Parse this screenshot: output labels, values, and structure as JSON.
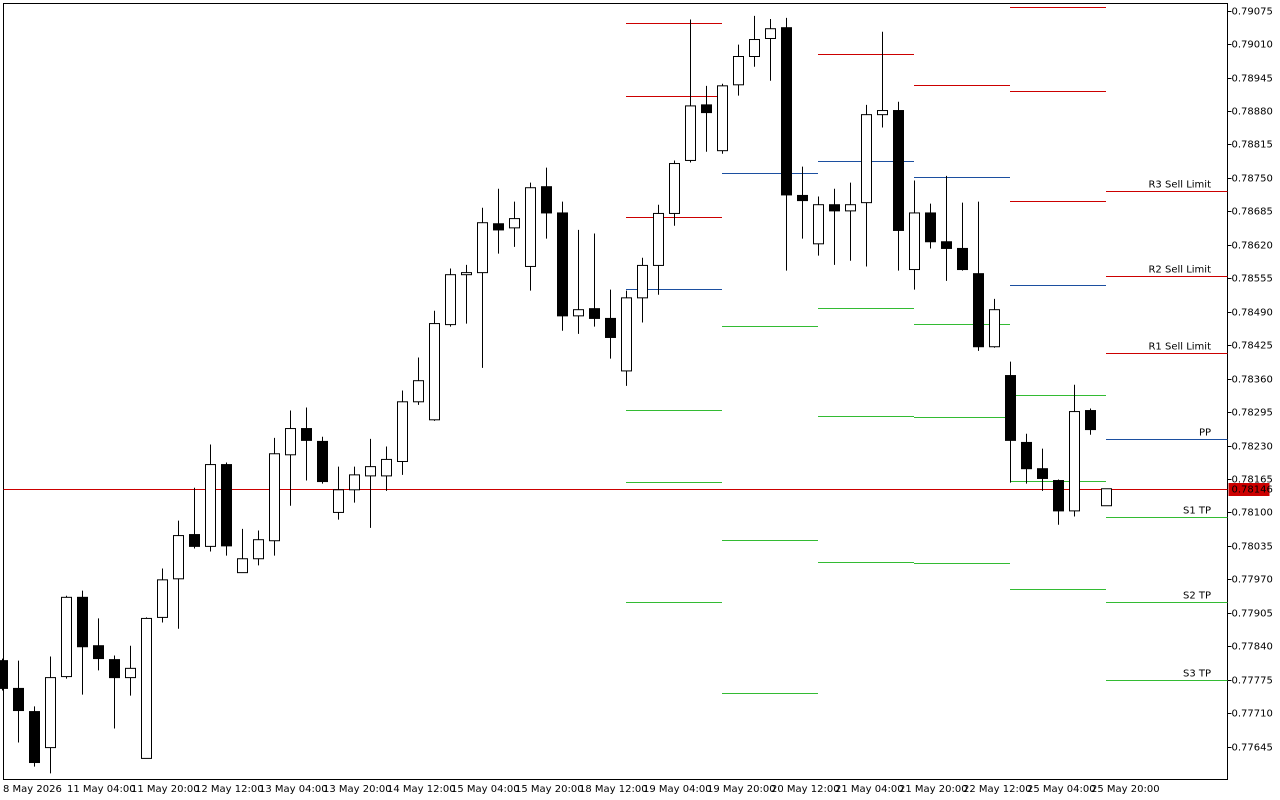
{
  "chart_data": {
    "type": "candlestick",
    "categories": [
      "8 May 2026",
      null,
      null,
      null,
      "11 May 04:00",
      null,
      null,
      null,
      "11 May 20:00",
      null,
      null,
      null,
      "12 May 12:00",
      null,
      null,
      null,
      "13 May 04:00",
      null,
      null,
      null,
      "13 May 20:00",
      null,
      null,
      null,
      "14 May 12:00",
      null,
      null,
      null,
      "15 May 04:00",
      null,
      null,
      null,
      "15 May 20:00",
      null,
      null,
      null,
      "18 May 12:00",
      null,
      null,
      null,
      "19 May 04:00",
      null,
      null,
      null,
      "19 May 20:00",
      null,
      null,
      null,
      "20 May 12:00",
      null,
      null,
      null,
      "21 May 04:00",
      null,
      null,
      null,
      "21 May 20:00",
      null,
      null,
      null,
      "22 May 12:00",
      null,
      null,
      null,
      "25 May 04:00",
      null,
      null,
      null,
      "25 May 20:00",
      null
    ],
    "open": [
      0.77812,
      0.77758,
      0.77713,
      0.77643,
      0.77781,
      0.77935,
      0.77841,
      0.77814,
      0.77779,
      0.77622,
      0.77896,
      0.77971,
      0.78057,
      0.78034,
      0.78193,
      0.77983,
      0.7801,
      0.78045,
      0.78212,
      0.78263,
      0.78238,
      0.781,
      0.78144,
      0.78171,
      0.78171,
      0.78199,
      0.78315,
      0.7828,
      0.78465,
      0.78562,
      0.78566,
      0.78661,
      0.78653,
      0.78578,
      0.78733,
      0.78682,
      0.78482,
      0.78496,
      0.78477,
      0.78375,
      0.78517,
      0.7858,
      0.78681,
      0.78784,
      0.78892,
      0.78803,
      0.78931,
      0.78986,
      0.79021,
      0.79042,
      0.78716,
      0.78622,
      0.78698,
      0.78686,
      0.78702,
      0.78873,
      0.78881,
      0.78572,
      0.78682,
      0.78626,
      0.78613,
      0.78564,
      0.78422,
      0.78366,
      0.78236,
      0.78185,
      0.78162,
      0.78103,
      0.78298,
      0.78113
    ],
    "high": [
      0.77816,
      0.77812,
      0.77723,
      0.7782,
      0.77938,
      0.77948,
      0.77894,
      0.77822,
      0.77841,
      0.77896,
      0.77991,
      0.78084,
      0.78148,
      0.78232,
      0.78197,
      0.78068,
      0.78065,
      0.78245,
      0.78298,
      0.78304,
      0.78247,
      0.78189,
      0.78189,
      0.78243,
      0.78228,
      0.78337,
      0.78401,
      0.78492,
      0.78574,
      0.78581,
      0.78692,
      0.78729,
      0.78704,
      0.78741,
      0.7877,
      0.78704,
      0.78649,
      0.78642,
      0.78533,
      0.78531,
      0.78595,
      0.78698,
      0.78784,
      0.79058,
      0.78929,
      0.78933,
      0.79009,
      0.79065,
      0.79059,
      0.79061,
      0.78772,
      0.78714,
      0.78729,
      0.78741,
      0.78892,
      0.79034,
      0.78898,
      0.78745,
      0.787,
      0.78754,
      0.78702,
      0.78704,
      0.78515,
      0.78393,
      0.78253,
      0.78224,
      0.78164,
      0.78348,
      0.78302,
      0.78146
    ],
    "low": [
      0.77754,
      0.77653,
      0.77606,
      0.77593,
      0.77777,
      0.77746,
      0.77793,
      0.7768,
      0.77744,
      0.77622,
      0.77886,
      0.77874,
      0.7803,
      0.78024,
      0.78016,
      0.77983,
      0.77997,
      0.78016,
      0.78113,
      0.78162,
      0.78156,
      0.78086,
      0.78119,
      0.7807,
      0.78142,
      0.78173,
      0.78309,
      0.78278,
      0.78461,
      0.78467,
      0.78381,
      0.78603,
      0.78616,
      0.78531,
      0.78632,
      0.78453,
      0.78447,
      0.78461,
      0.78399,
      0.78346,
      0.78469,
      0.78523,
      0.78657,
      0.7878,
      0.78801,
      0.78797,
      0.7891,
      0.78966,
      0.78939,
      0.7857,
      0.78632,
      0.78599,
      0.78581,
      0.78589,
      0.78578,
      0.78848,
      0.7857,
      0.78533,
      0.78613,
      0.7855,
      0.7857,
      0.78414,
      0.7842,
      0.78158,
      0.78156,
      0.78142,
      0.78076,
      0.78092,
      0.78251,
      0.78113
    ],
    "close": [
      0.77758,
      0.77715,
      0.77614,
      0.77779,
      0.77935,
      0.77839,
      0.77816,
      0.77779,
      0.77797,
      0.77894,
      0.77969,
      0.78055,
      0.78034,
      0.78193,
      0.78035,
      0.7801,
      0.78047,
      0.78214,
      0.78263,
      0.7824,
      0.7816,
      0.78144,
      0.78173,
      0.78189,
      0.78203,
      0.78315,
      0.78356,
      0.78467,
      0.78562,
      0.78566,
      0.78663,
      0.78649,
      0.78671,
      0.78731,
      0.78682,
      0.78482,
      0.78494,
      0.78477,
      0.7844,
      0.78517,
      0.7858,
      0.78681,
      0.78778,
      0.7889,
      0.78877,
      0.78929,
      0.78986,
      0.79019,
      0.7904,
      0.78717,
      0.78706,
      0.78698,
      0.78686,
      0.78698,
      0.78873,
      0.78881,
      0.78648,
      0.78682,
      0.78626,
      0.78613,
      0.78572,
      0.78422,
      0.78494,
      0.7824,
      0.78185,
      0.78166,
      0.78103,
      0.78296,
      0.78261,
      0.78146
    ],
    "up_color": "#ffffff",
    "down_color": "#000000",
    "ylim": [
      0.77581,
      0.79089
    ],
    "yticks": [
      0.79075,
      {
        "value": 0.7901,
        "label": "0.79010"
      },
      0.78945,
      {
        "value": 0.7888,
        "label": "0.78880"
      },
      0.78815,
      {
        "value": 0.7875,
        "label": "0.78750"
      },
      0.78685,
      {
        "value": 0.7862,
        "label": "0.78620"
      },
      0.78555,
      {
        "value": 0.7849,
        "label": "0.78490"
      },
      0.78425,
      {
        "value": 0.7836,
        "label": "0.78360"
      },
      0.78295,
      {
        "value": 0.7823,
        "label": "0.78230"
      },
      0.78165,
      {
        "value": 0.781,
        "label": "0.78100"
      },
      0.78035,
      {
        "value": 0.7797,
        "label": "0.77970"
      },
      0.77905,
      {
        "value": 0.7784,
        "label": "0.77840"
      },
      0.77775,
      {
        "value": 0.7771,
        "label": "0.77710"
      },
      0.77645
    ],
    "current_price": 0.78146,
    "current_price_color": "#cc0000",
    "pivot_days": [
      {
        "start": 39,
        "levels": [
          {
            "value": 0.79052,
            "color": "#cc0000"
          },
          {
            "value": 0.7891,
            "color": "#cc0000"
          },
          {
            "value": 0.78675,
            "color": "#cc0000"
          },
          {
            "value": 0.78535,
            "color": "#1c4fa0"
          },
          {
            "value": 0.783,
            "color": "#33bb33"
          },
          {
            "value": 0.7816,
            "color": "#33bb33"
          },
          {
            "value": 0.77925,
            "color": "#33bb33"
          }
        ]
      },
      {
        "start": 45,
        "levels": [
          {
            "value": 0.7876,
            "color": "#1c4fa0"
          },
          {
            "value": 0.78463,
            "color": "#33bb33"
          },
          {
            "value": 0.78047,
            "color": "#33bb33"
          },
          {
            "value": 0.7775,
            "color": "#33bb33"
          }
        ]
      },
      {
        "start": 51,
        "levels": [
          {
            "value": 0.78991,
            "color": "#cc0000"
          },
          {
            "value": 0.78782,
            "color": "#1c4fa0"
          },
          {
            "value": 0.78498,
            "color": "#33bb33"
          },
          {
            "value": 0.78288,
            "color": "#33bb33"
          },
          {
            "value": 0.78004,
            "color": "#33bb33"
          }
        ]
      },
      {
        "start": 57,
        "levels": [
          {
            "value": 0.78931,
            "color": "#cc0000"
          },
          {
            "value": 0.78751,
            "color": "#1c4fa0"
          },
          {
            "value": 0.78467,
            "color": "#33bb33"
          },
          {
            "value": 0.78286,
            "color": "#33bb33"
          },
          {
            "value": 0.78002,
            "color": "#33bb33"
          }
        ]
      },
      {
        "start": 63,
        "levels": [
          {
            "value": 0.79083,
            "color": "#cc0000"
          },
          {
            "value": 0.78918,
            "color": "#cc0000"
          },
          {
            "value": 0.78706,
            "color": "#cc0000"
          },
          {
            "value": 0.78541,
            "color": "#1c4fa0"
          },
          {
            "value": 0.78329,
            "color": "#33bb33"
          },
          {
            "value": 0.78162,
            "color": "#33bb33"
          },
          {
            "value": 0.77952,
            "color": "#33bb33"
          }
        ]
      },
      {
        "start": 69,
        "levels": [
          {
            "value": 0.78725,
            "color": "#cc0000",
            "label": "R3 Sell Limit"
          },
          {
            "value": 0.7856,
            "color": "#cc0000",
            "label": "R2 Sell Limit"
          },
          {
            "value": 0.78409,
            "color": "#cc0000",
            "label": "R1 Sell Limit"
          },
          {
            "value": 0.78242,
            "color": "#1c4fa0",
            "label": "PP"
          },
          {
            "value": 0.78092,
            "color": "#33bb33",
            "label": "S1 TP"
          },
          {
            "value": 0.77925,
            "color": "#33bb33",
            "label": "S2 TP"
          },
          {
            "value": 0.77775,
            "color": "#33bb33",
            "label": "S3 TP"
          }
        ]
      }
    ]
  }
}
